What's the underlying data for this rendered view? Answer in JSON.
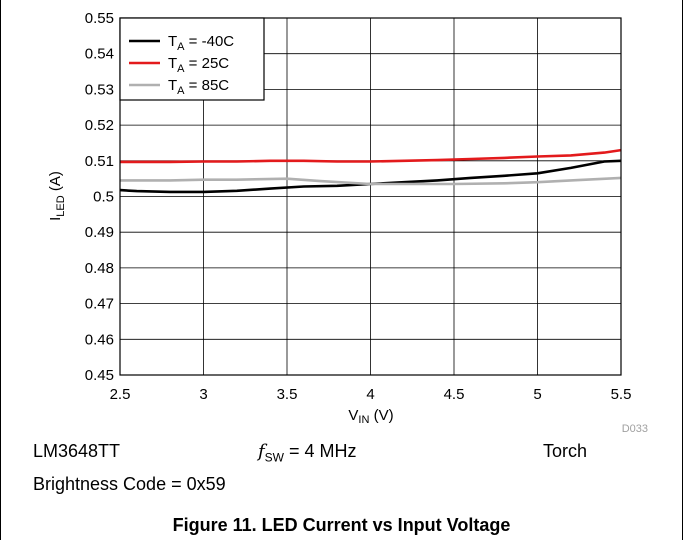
{
  "chart_data": {
    "type": "line",
    "xlabel": "V",
    "xlabel_sub": "IN",
    "xlabel_unit": " (V)",
    "ylabel": "I",
    "ylabel_sub": "LED",
    "ylabel_unit": " (A)",
    "xlim": [
      2.5,
      5.5
    ],
    "ylim": [
      0.45,
      0.55
    ],
    "x_ticks": [
      "2.5",
      "3",
      "3.5",
      "4",
      "4.5",
      "5",
      "5.5"
    ],
    "y_ticks": [
      "0.45",
      "0.46",
      "0.47",
      "0.48",
      "0.49",
      "0.5",
      "0.51",
      "0.52",
      "0.53",
      "0.54",
      "0.55"
    ],
    "grid": true,
    "legend_position": "top-left",
    "figure_id": "D033",
    "series": [
      {
        "name": "T",
        "name_sub": "A",
        "name_rest": " = -40C",
        "color": "#000000",
        "x": [
          2.5,
          2.6,
          2.8,
          3.0,
          3.2,
          3.4,
          3.6,
          3.8,
          4.0,
          4.2,
          4.4,
          4.6,
          4.8,
          5.0,
          5.2,
          5.4,
          5.5
        ],
        "y": [
          0.5018,
          0.5015,
          0.5013,
          0.5013,
          0.5016,
          0.5022,
          0.5028,
          0.503,
          0.5035,
          0.504,
          0.5045,
          0.5052,
          0.5058,
          0.5065,
          0.508,
          0.5098,
          0.51
        ]
      },
      {
        "name": "T",
        "name_sub": "A",
        "name_rest": " = 25C",
        "color": "#e31a1c",
        "x": [
          2.5,
          2.8,
          3.0,
          3.2,
          3.4,
          3.6,
          3.8,
          4.0,
          4.2,
          4.4,
          4.6,
          4.8,
          5.0,
          5.2,
          5.4,
          5.5
        ],
        "y": [
          0.5097,
          0.5097,
          0.5098,
          0.5098,
          0.51,
          0.51,
          0.5098,
          0.5098,
          0.51,
          0.5102,
          0.5105,
          0.5108,
          0.5112,
          0.5115,
          0.5123,
          0.513
        ]
      },
      {
        "name": "T",
        "name_sub": "A",
        "name_rest": " = 85C",
        "color": "#b0b0b0",
        "x": [
          2.5,
          2.8,
          3.0,
          3.2,
          3.5,
          3.7,
          4.0,
          4.2,
          4.5,
          4.8,
          5.0,
          5.2,
          5.5
        ],
        "y": [
          0.5045,
          0.5045,
          0.5047,
          0.5047,
          0.505,
          0.5043,
          0.5035,
          0.5035,
          0.5035,
          0.5037,
          0.504,
          0.5045,
          0.5052
        ]
      }
    ]
  },
  "conditions": {
    "device": "LM3648TT",
    "fsw_symbol": "f",
    "fsw_sub": "SW",
    "fsw_value": " = 4 MHz",
    "mode": "Torch",
    "brightness": "Brightness Code = 0x59"
  },
  "caption": "Figure 11. LED Current vs Input Voltage"
}
